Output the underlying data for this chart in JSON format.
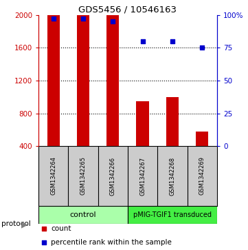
{
  "title": "GDS5456 / 10546163",
  "samples": [
    "GSM1342264",
    "GSM1342265",
    "GSM1342266",
    "GSM1342267",
    "GSM1342268",
    "GSM1342269"
  ],
  "counts": [
    2000,
    2000,
    2000,
    950,
    1000,
    580
  ],
  "percentiles": [
    97,
    97,
    95,
    80,
    80,
    75
  ],
  "bar_bottom": 400,
  "ylim_left": [
    400,
    2000
  ],
  "ylim_right": [
    0,
    100
  ],
  "yticks_left": [
    400,
    800,
    1200,
    1600,
    2000
  ],
  "yticks_right": [
    0,
    25,
    50,
    75,
    100
  ],
  "bar_color": "#cc0000",
  "dot_color": "#0000cc",
  "grid_color": "#000000",
  "protocol_labels": [
    "control",
    "pMIG-TGIF1 transduced"
  ],
  "protocol_colors": [
    "#aaffaa",
    "#44ee44"
  ],
  "sample_box_color": "#cccccc",
  "legend_count_label": "count",
  "legend_pct_label": "percentile rank within the sample",
  "bg_color": "#ffffff"
}
